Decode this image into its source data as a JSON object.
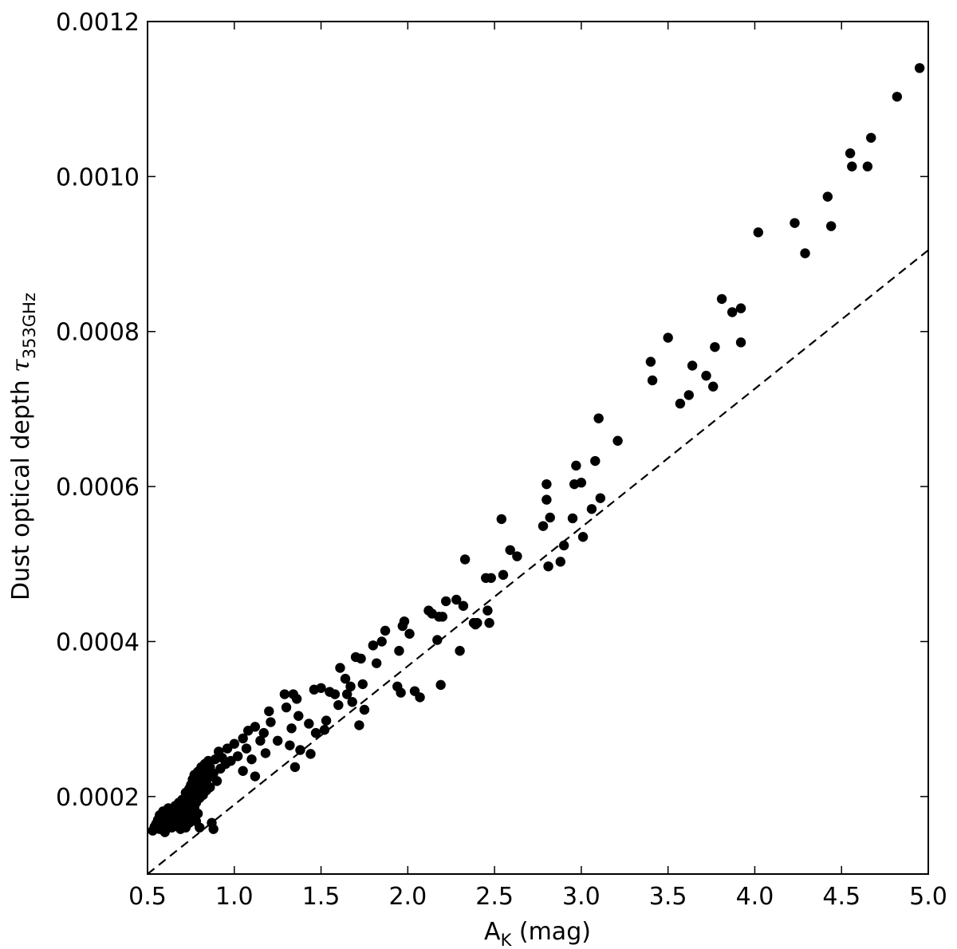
{
  "chart_data": {
    "type": "scatter",
    "title": "",
    "xlabel": "A",
    "xlabel_sub": "K",
    "xlabel_suffix": " (mag)",
    "ylabel": "Dust optical depth ",
    "ylabel_symbol": "τ",
    "ylabel_sub": "353GHz",
    "xlim": [
      0.5,
      5.0
    ],
    "ylim": [
      0.0001,
      0.0012
    ],
    "xticks": [
      0.5,
      1.0,
      1.5,
      2.0,
      2.5,
      3.0,
      3.5,
      4.0,
      4.5,
      5.0
    ],
    "xtick_labels": [
      "0.5",
      "1.0",
      "1.5",
      "2.0",
      "2.5",
      "3.0",
      "3.5",
      "4.0",
      "4.5",
      "5.0"
    ],
    "yticks": [
      0.0002,
      0.0004,
      0.0006,
      0.0008,
      0.001,
      0.0012
    ],
    "ytick_labels": [
      "0.0002",
      "0.0004",
      "0.0006",
      "0.0008",
      "0.0010",
      "0.0012"
    ],
    "grid": false,
    "marker_color": "#000000",
    "fit_line": {
      "style": "dashed",
      "color": "#000000",
      "x": [
        0.5,
        5.0
      ],
      "y": [
        0.0001,
        0.000905
      ]
    },
    "points": [
      [
        0.53,
        0.000156
      ],
      [
        0.54,
        0.000161
      ],
      [
        0.55,
        0.000165
      ],
      [
        0.56,
        0.00017
      ],
      [
        0.57,
        0.000158
      ],
      [
        0.57,
        0.000176
      ],
      [
        0.58,
        0.000168
      ],
      [
        0.59,
        0.000162
      ],
      [
        0.59,
        0.000181
      ],
      [
        0.6,
        0.000154
      ],
      [
        0.6,
        0.000174
      ],
      [
        0.61,
        0.000167
      ],
      [
        0.61,
        0.00016
      ],
      [
        0.62,
        0.000178
      ],
      [
        0.62,
        0.000185
      ],
      [
        0.63,
        0.000164
      ],
      [
        0.63,
        0.000171
      ],
      [
        0.64,
        0.00016
      ],
      [
        0.64,
        0.000182
      ],
      [
        0.65,
        0.000176
      ],
      [
        0.65,
        0.000168
      ],
      [
        0.66,
        0.000188
      ],
      [
        0.66,
        0.000162
      ],
      [
        0.67,
        0.00018
      ],
      [
        0.67,
        0.000172
      ],
      [
        0.68,
        0.000192
      ],
      [
        0.68,
        0.000166
      ],
      [
        0.69,
        0.000185
      ],
      [
        0.69,
        0.000158
      ],
      [
        0.7,
        0.000196
      ],
      [
        0.7,
        0.000176
      ],
      [
        0.7,
        0.000163
      ],
      [
        0.71,
        0.00019
      ],
      [
        0.71,
        0.00017
      ],
      [
        0.72,
        0.000205
      ],
      [
        0.72,
        0.000182
      ],
      [
        0.72,
        0.00016
      ],
      [
        0.73,
        0.000198
      ],
      [
        0.73,
        0.000175
      ],
      [
        0.74,
        0.00021
      ],
      [
        0.74,
        0.000188
      ],
      [
        0.74,
        0.000166
      ],
      [
        0.75,
        0.000215
      ],
      [
        0.75,
        0.000195
      ],
      [
        0.75,
        0.000178
      ],
      [
        0.76,
        0.000222
      ],
      [
        0.76,
        0.0002
      ],
      [
        0.76,
        0.000172
      ],
      [
        0.77,
        0.000228
      ],
      [
        0.77,
        0.000206
      ],
      [
        0.77,
        0.000185
      ],
      [
        0.78,
        0.000215
      ],
      [
        0.78,
        0.000192
      ],
      [
        0.78,
        0.000168
      ],
      [
        0.79,
        0.000232
      ],
      [
        0.79,
        0.00021
      ],
      [
        0.79,
        0.000178
      ],
      [
        0.8,
        0.000225
      ],
      [
        0.8,
        0.000198
      ],
      [
        0.8,
        0.00016
      ],
      [
        0.81,
        0.000238
      ],
      [
        0.81,
        0.000214
      ],
      [
        0.82,
        0.000228
      ],
      [
        0.82,
        0.000202
      ],
      [
        0.83,
        0.000242
      ],
      [
        0.83,
        0.00022
      ],
      [
        0.84,
        0.000234
      ],
      [
        0.84,
        0.000208
      ],
      [
        0.85,
        0.000246
      ],
      [
        0.85,
        0.000224
      ],
      [
        0.86,
        0.000238
      ],
      [
        0.86,
        0.000212
      ],
      [
        0.87,
        0.000166
      ],
      [
        0.88,
        0.000158
      ],
      [
        0.88,
        0.00023
      ],
      [
        0.89,
        0.000248
      ],
      [
        0.9,
        0.00022
      ],
      [
        0.91,
        0.000258
      ],
      [
        0.92,
        0.000236
      ],
      [
        0.93,
        0.00025
      ],
      [
        0.95,
        0.000242
      ],
      [
        0.96,
        0.000262
      ],
      [
        0.98,
        0.000246
      ],
      [
        1.0,
        0.000268
      ],
      [
        1.02,
        0.000252
      ],
      [
        1.05,
        0.000275
      ],
      [
        1.05,
        0.000233
      ],
      [
        1.07,
        0.000262
      ],
      [
        1.08,
        0.000285
      ],
      [
        1.1,
        0.000248
      ],
      [
        1.12,
        0.00029
      ],
      [
        1.12,
        0.000226
      ],
      [
        1.15,
        0.000272
      ],
      [
        1.17,
        0.000282
      ],
      [
        1.18,
        0.000256
      ],
      [
        1.2,
        0.00031
      ],
      [
        1.21,
        0.000296
      ],
      [
        1.25,
        0.000272
      ],
      [
        1.29,
        0.000332
      ],
      [
        1.3,
        0.000315
      ],
      [
        1.32,
        0.000266
      ],
      [
        1.33,
        0.000288
      ],
      [
        1.34,
        0.000332
      ],
      [
        1.35,
        0.000238
      ],
      [
        1.36,
        0.000326
      ],
      [
        1.37,
        0.000304
      ],
      [
        1.38,
        0.00026
      ],
      [
        1.43,
        0.000294
      ],
      [
        1.44,
        0.000255
      ],
      [
        1.46,
        0.000338
      ],
      [
        1.47,
        0.000282
      ],
      [
        1.5,
        0.00034
      ],
      [
        1.52,
        0.000286
      ],
      [
        1.53,
        0.000298
      ],
      [
        1.55,
        0.000335
      ],
      [
        1.58,
        0.000332
      ],
      [
        1.6,
        0.000318
      ],
      [
        1.61,
        0.000366
      ],
      [
        1.64,
        0.000352
      ],
      [
        1.65,
        0.000332
      ],
      [
        1.67,
        0.000342
      ],
      [
        1.68,
        0.000322
      ],
      [
        1.7,
        0.00038
      ],
      [
        1.72,
        0.000292
      ],
      [
        1.73,
        0.000378
      ],
      [
        1.74,
        0.000345
      ],
      [
        1.75,
        0.000312
      ],
      [
        1.8,
        0.000395
      ],
      [
        1.82,
        0.000372
      ],
      [
        1.85,
        0.0004
      ],
      [
        1.87,
        0.000414
      ],
      [
        1.94,
        0.000342
      ],
      [
        1.95,
        0.000388
      ],
      [
        1.96,
        0.000334
      ],
      [
        1.97,
        0.00042
      ],
      [
        1.98,
        0.000426
      ],
      [
        2.01,
        0.00041
      ],
      [
        2.04,
        0.000336
      ],
      [
        2.07,
        0.000328
      ],
      [
        2.12,
        0.00044
      ],
      [
        2.14,
        0.000436
      ],
      [
        2.17,
        0.000402
      ],
      [
        2.18,
        0.000432
      ],
      [
        2.19,
        0.000344
      ],
      [
        2.2,
        0.000432
      ],
      [
        2.22,
        0.000452
      ],
      [
        2.28,
        0.000454
      ],
      [
        2.3,
        0.000388
      ],
      [
        2.32,
        0.000446
      ],
      [
        2.33,
        0.000506
      ],
      [
        2.38,
        0.000424
      ],
      [
        2.39,
        0.000422
      ],
      [
        2.4,
        0.000424
      ],
      [
        2.45,
        0.000482
      ],
      [
        2.46,
        0.00044
      ],
      [
        2.47,
        0.000424
      ],
      [
        2.48,
        0.000482
      ],
      [
        2.54,
        0.000558
      ],
      [
        2.55,
        0.000486
      ],
      [
        2.59,
        0.000518
      ],
      [
        2.63,
        0.00051
      ],
      [
        2.78,
        0.000549
      ],
      [
        2.8,
        0.000603
      ],
      [
        2.8,
        0.000583
      ],
      [
        2.81,
        0.000497
      ],
      [
        2.82,
        0.00056
      ],
      [
        2.88,
        0.000503
      ],
      [
        2.9,
        0.000524
      ],
      [
        2.95,
        0.000559
      ],
      [
        2.96,
        0.000603
      ],
      [
        2.97,
        0.000627
      ],
      [
        3.0,
        0.000605
      ],
      [
        3.01,
        0.000535
      ],
      [
        3.06,
        0.000571
      ],
      [
        3.08,
        0.000633
      ],
      [
        3.1,
        0.000688
      ],
      [
        3.11,
        0.000585
      ],
      [
        3.21,
        0.000659
      ],
      [
        3.4,
        0.000761
      ],
      [
        3.41,
        0.000737
      ],
      [
        3.5,
        0.000792
      ],
      [
        3.57,
        0.000707
      ],
      [
        3.62,
        0.000718
      ],
      [
        3.64,
        0.000756
      ],
      [
        3.72,
        0.000743
      ],
      [
        3.76,
        0.000729
      ],
      [
        3.77,
        0.00078
      ],
      [
        3.81,
        0.000842
      ],
      [
        3.87,
        0.000825
      ],
      [
        3.92,
        0.00083
      ],
      [
        3.92,
        0.000786
      ],
      [
        4.02,
        0.000928
      ],
      [
        4.23,
        0.00094
      ],
      [
        4.29,
        0.000901
      ],
      [
        4.42,
        0.000974
      ],
      [
        4.44,
        0.000936
      ],
      [
        4.55,
        0.00103
      ],
      [
        4.56,
        0.001013
      ],
      [
        4.65,
        0.001013
      ],
      [
        4.67,
        0.00105
      ],
      [
        4.82,
        0.001103
      ],
      [
        4.95,
        0.00114
      ]
    ]
  }
}
